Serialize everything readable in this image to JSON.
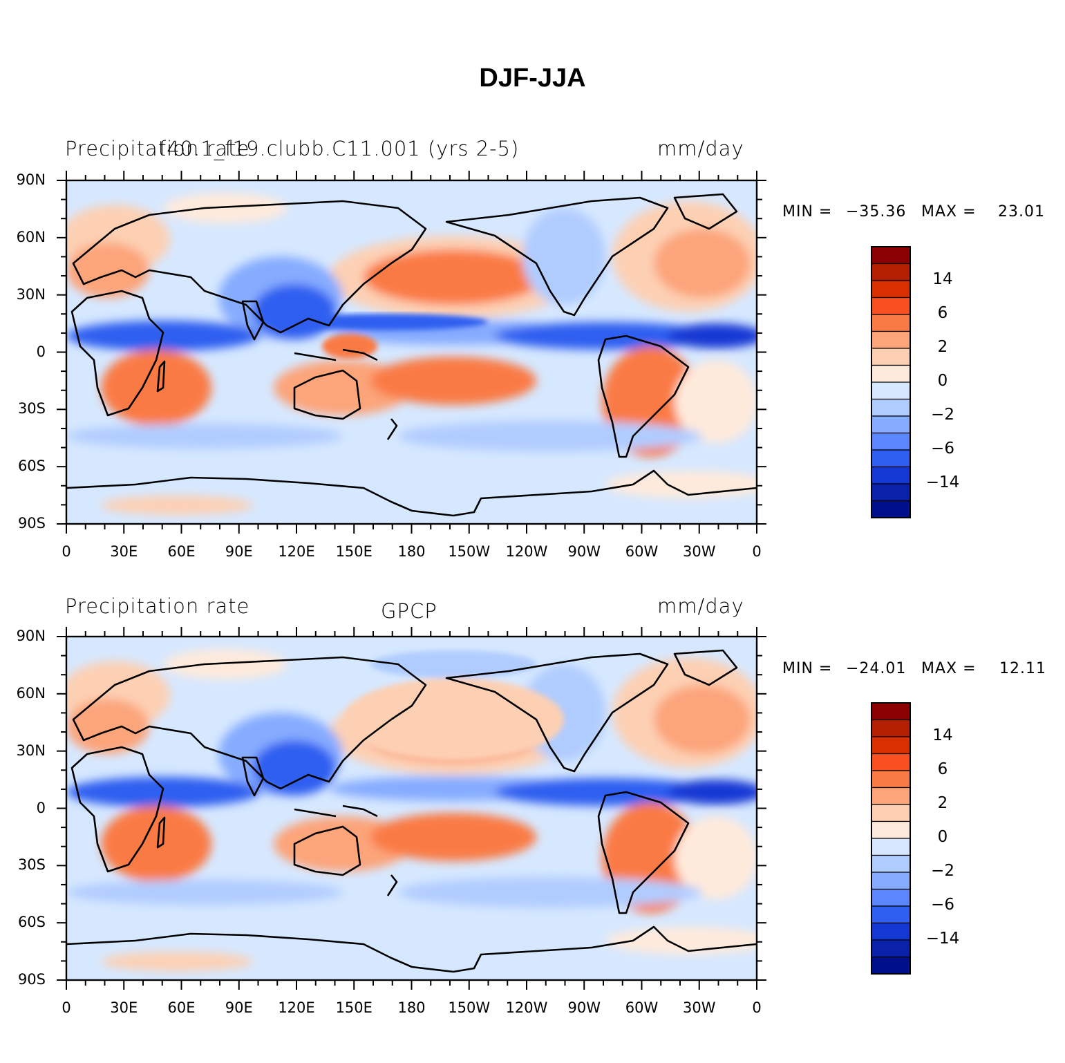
{
  "title": "DJF-JJA",
  "panels": [
    {
      "left_label": "Precipitation rate",
      "center_label": "f40.1_f19.clubb.C11.001 (yrs 2-5)",
      "right_label": "mm/day",
      "min_label": "MIN =",
      "min_value": "−35.36",
      "max_label": "MAX =",
      "max_value": "23.01"
    },
    {
      "left_label": "Precipitation rate",
      "center_label": "GPCP",
      "right_label": "mm/day",
      "min_label": "MIN =",
      "min_value": "−24.01",
      "max_label": "MAX =",
      "max_value": "12.11"
    }
  ],
  "axes": {
    "lat_ticks": [
      "90N",
      "60N",
      "30N",
      "0",
      "30S",
      "60S",
      "90S"
    ],
    "lon_ticks": [
      "0",
      "30E",
      "60E",
      "90E",
      "120E",
      "150E",
      "180",
      "150W",
      "120W",
      "90W",
      "60W",
      "30W",
      "0"
    ]
  },
  "colorbar": {
    "labels": [
      "14",
      "6",
      "2",
      "0",
      "−2",
      "−6",
      "−14"
    ],
    "colors": [
      "#8b0000",
      "#b22000",
      "#d83000",
      "#f85020",
      "#fa7a45",
      "#fca47a",
      "#fdd0b4",
      "#feeadb",
      "#d6e8ff",
      "#b0ccff",
      "#86acff",
      "#5a87ff",
      "#2e5ff0",
      "#1438d4",
      "#0a22aa",
      "#00108a"
    ]
  },
  "palette": {
    "background_neg": "#d6e8ff",
    "coast": "#000000"
  }
}
